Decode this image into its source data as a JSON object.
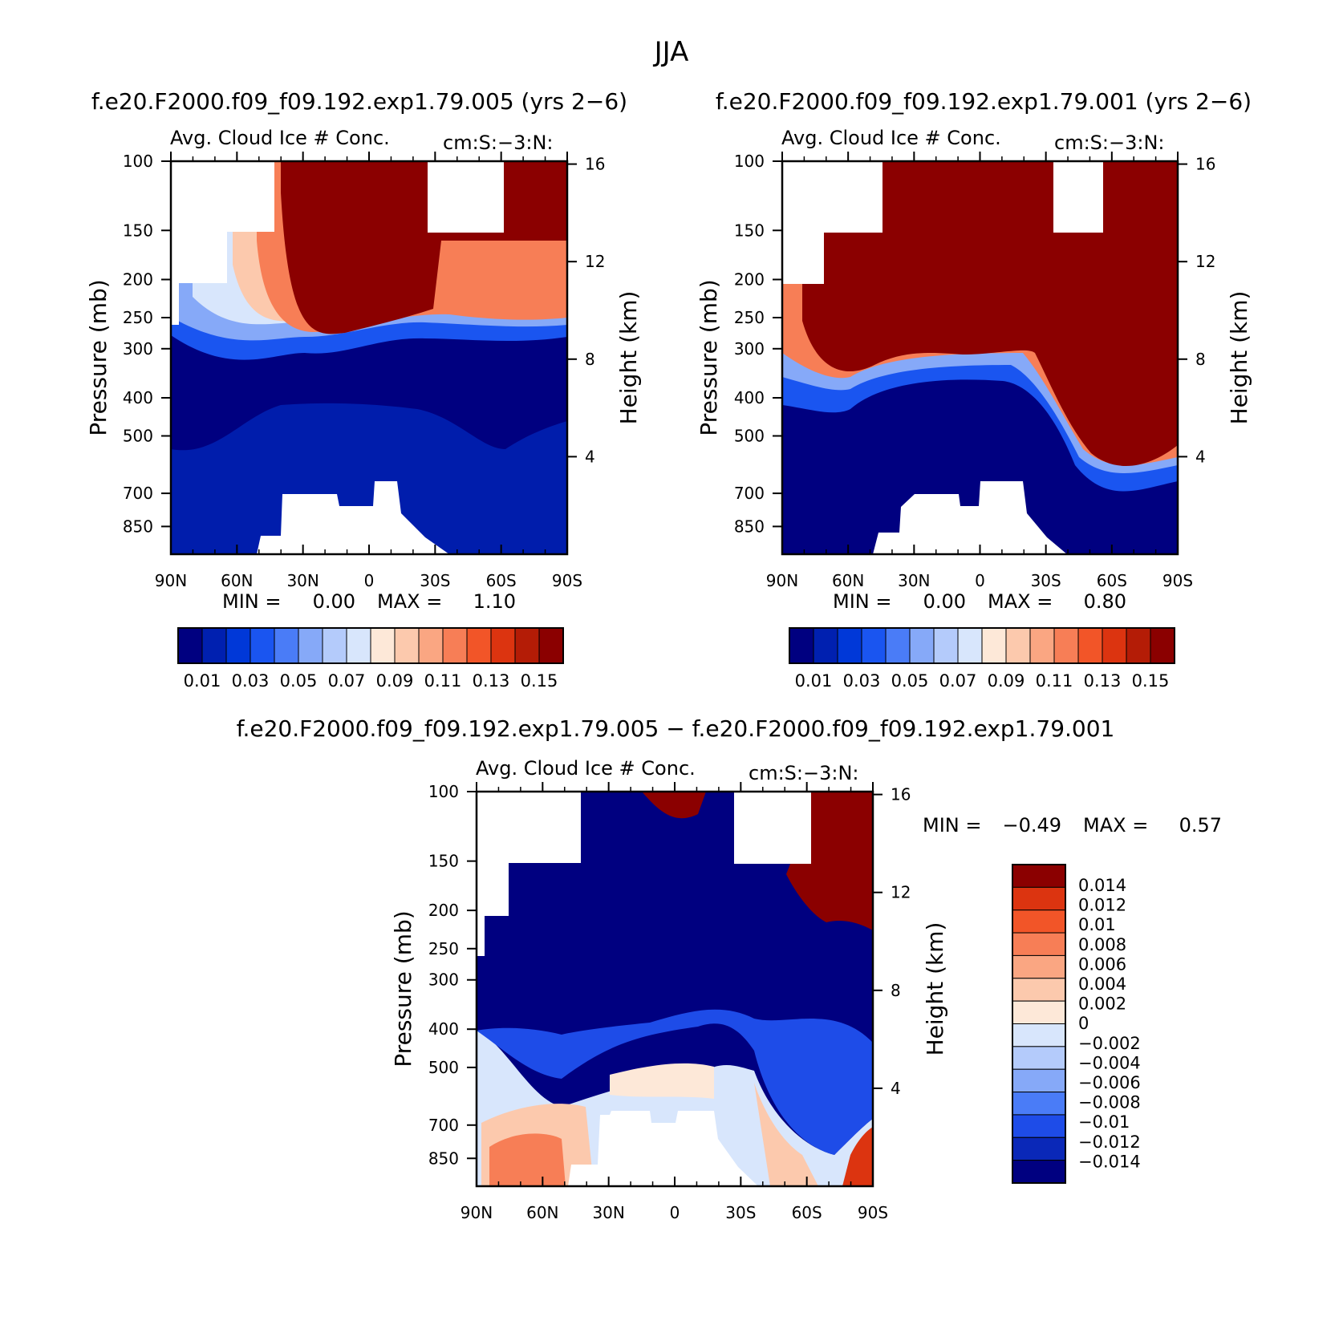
{
  "title": "JJA",
  "palette": {
    "main": [
      "#000080",
      "#0020b0",
      "#0038d8",
      "#1a55f0",
      "#4a7cf7",
      "#86a9f8",
      "#b4cbfb",
      "#d8e6fc",
      "#fde8d8",
      "#fcc9ad",
      "#faa682",
      "#f77e56",
      "#f25528",
      "#dc3410",
      "#b41c06",
      "#8b0000"
    ],
    "diff": [
      "#000080",
      "#0a28b8",
      "#1e4ce8",
      "#4a7cf7",
      "#86a9f8",
      "#b4cbfb",
      "#d8e6fc",
      "#fde8d8",
      "#fcc9ad",
      "#faa682",
      "#f77e56",
      "#f25528",
      "#dc3410",
      "#8b0000"
    ]
  },
  "chart_data": [
    {
      "type": "heatmap",
      "case_title": "f.e20.F2000.f09_f09.192.exp1.79.005 (yrs 2−6)",
      "variable": "Avg. Cloud Ice # Conc.",
      "units": "cm:S:−3:N:",
      "ylabel": "Pressure (mb)",
      "ylabel_right": "Height (km)",
      "x_ticks": [
        "90N",
        "60N",
        "30N",
        "0",
        "30S",
        "60S",
        "90S"
      ],
      "y_ticks": [
        "100",
        "150",
        "200",
        "250",
        "300",
        "400",
        "500",
        "700",
        "850"
      ],
      "height_ticks": [
        "16",
        "12",
        "8",
        "4"
      ],
      "min_label": "MIN =",
      "min_value": "0.00",
      "max_label": "MAX =",
      "max_value": "1.10",
      "colorbar_labels": [
        "0.01",
        "0.03",
        "0.05",
        "0.07",
        "0.09",
        "0.11",
        "0.13",
        "0.15"
      ],
      "levels": [
        0.01,
        0.02,
        0.03,
        0.04,
        0.05,
        0.06,
        0.07,
        0.08,
        0.09,
        0.1,
        0.11,
        0.12,
        0.13,
        0.14,
        0.15
      ]
    },
    {
      "type": "heatmap",
      "case_title": "f.e20.F2000.f09_f09.192.exp1.79.001 (yrs 2−6)",
      "variable": "Avg. Cloud Ice # Conc.",
      "units": "cm:S:−3:N:",
      "ylabel": "Pressure (mb)",
      "ylabel_right": "Height (km)",
      "x_ticks": [
        "90N",
        "60N",
        "30N",
        "0",
        "30S",
        "60S",
        "90S"
      ],
      "y_ticks": [
        "100",
        "150",
        "200",
        "250",
        "300",
        "400",
        "500",
        "700",
        "850"
      ],
      "height_ticks": [
        "16",
        "12",
        "8",
        "4"
      ],
      "min_label": "MIN =",
      "min_value": "0.00",
      "max_label": "MAX =",
      "max_value": "0.80",
      "colorbar_labels": [
        "0.01",
        "0.03",
        "0.05",
        "0.07",
        "0.09",
        "0.11",
        "0.13",
        "0.15"
      ],
      "levels": [
        0.01,
        0.02,
        0.03,
        0.04,
        0.05,
        0.06,
        0.07,
        0.08,
        0.09,
        0.1,
        0.11,
        0.12,
        0.13,
        0.14,
        0.15
      ]
    },
    {
      "type": "heatmap",
      "case_title": "f.e20.F2000.f09_f09.192.exp1.79.005 − f.e20.F2000.f09_f09.192.exp1.79.001",
      "variable": "Avg. Cloud Ice # Conc.",
      "units": "cm:S:−3:N:",
      "ylabel": "Pressure (mb)",
      "ylabel_right": "Height (km)",
      "x_ticks": [
        "90N",
        "60N",
        "30N",
        "0",
        "30S",
        "60S",
        "90S"
      ],
      "y_ticks": [
        "100",
        "150",
        "200",
        "250",
        "300",
        "400",
        "500",
        "700",
        "850"
      ],
      "height_ticks": [
        "16",
        "12",
        "8",
        "4"
      ],
      "min_label": "MIN =",
      "min_value": "−0.49",
      "max_label": "MAX =",
      "max_value": "0.57",
      "colorbar_labels": [
        "0.014",
        "0.012",
        "0.01",
        "0.008",
        "0.006",
        "0.004",
        "0.002",
        "0",
        "−0.002",
        "−0.004",
        "−0.006",
        "−0.008",
        "−0.01",
        "−0.012",
        "−0.014"
      ],
      "levels": [
        -0.014,
        -0.012,
        -0.01,
        -0.008,
        -0.006,
        -0.004,
        -0.002,
        0,
        0.002,
        0.004,
        0.006,
        0.008,
        0.01,
        0.012,
        0.014
      ]
    }
  ]
}
